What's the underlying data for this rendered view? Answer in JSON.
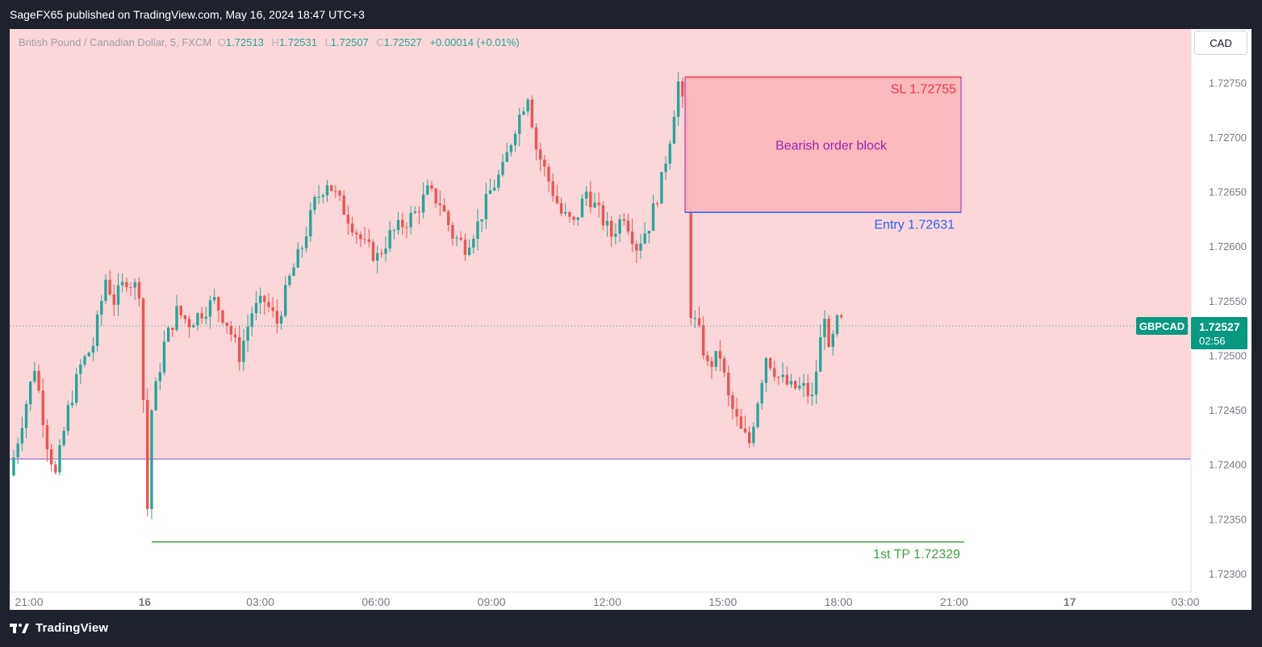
{
  "header": {
    "publisher_line": "SageFX65 published on TradingView.com, May 16, 2024 18:47 UTC+3"
  },
  "legend": {
    "symbol": "British Pound / Canadian Dollar, 5, FXCM",
    "open_label": "O",
    "open": "1.72513",
    "high_label": "H",
    "high": "1.72531",
    "low_label": "L",
    "low": "1.72507",
    "close_label": "C",
    "close": "1.72527",
    "change": "+0.00014 (+0.01%)"
  },
  "currency_button": "CAD",
  "footer": {
    "brand": "TradingView",
    "logo_icon": "tradingview-logo-icon"
  },
  "colors": {
    "up": "#26a69a",
    "down": "#ef5350",
    "zone_fill": "#fcd7d9",
    "order_block_fill": "#f8b6bb",
    "order_block_border": "#9c27b0",
    "entry_line": "#2962ff",
    "sl_text": "#f23645",
    "tp_line": "#43a047",
    "bottom_line": "#7e57c2"
  },
  "chart_data": {
    "type": "candlestick",
    "instrument": "GBPCAD",
    "timeframe": "5",
    "x_tick_labels": [
      "21:00",
      "16",
      "03:00",
      "06:00",
      "09:00",
      "12:00",
      "15:00",
      "18:00",
      "21:00",
      "17",
      "03:00"
    ],
    "y_tick_labels": [
      "1.72750",
      "1.72700",
      "1.72650",
      "1.72600",
      "1.72550",
      "1.72500",
      "1.72450",
      "1.72400",
      "1.72350",
      "1.72300"
    ],
    "y_tick_values": [
      1.7275,
      1.727,
      1.7265,
      1.726,
      1.7255,
      1.725,
      1.7245,
      1.724,
      1.7235,
      1.723
    ],
    "ylim": [
      1.72283,
      1.72799
    ],
    "last_price": {
      "symbol_label": "GBPCAD",
      "price": "1.72527",
      "countdown": "02:56",
      "value": 1.72527
    },
    "annotations": {
      "sl_label": "SL 1.72755",
      "sl_value": 1.72755,
      "entry_label": "Entry  1.72631",
      "entry_value": 1.72631,
      "order_block_label": "Bearish order block",
      "tp_label": "1st TP 1.72329",
      "tp_value": 1.72329,
      "zone_bottom_value": 1.72405
    },
    "price_path": [
      [
        0,
        1.7239
      ],
      [
        3,
        1.7244
      ],
      [
        6,
        1.7249
      ],
      [
        9,
        1.7242
      ],
      [
        11,
        1.7239
      ],
      [
        14,
        1.7245
      ],
      [
        17,
        1.7249
      ],
      [
        20,
        1.7251
      ],
      [
        23,
        1.7257
      ],
      [
        25,
        1.7255
      ],
      [
        28,
        1.7257
      ],
      [
        31,
        1.7256
      ],
      [
        33,
        1.7236
      ],
      [
        34,
        1.7245
      ],
      [
        37,
        1.7251
      ],
      [
        40,
        1.7254
      ],
      [
        43,
        1.7253
      ],
      [
        46,
        1.7254
      ],
      [
        49,
        1.7255
      ],
      [
        52,
        1.7253
      ],
      [
        55,
        1.725
      ],
      [
        58,
        1.7254
      ],
      [
        61,
        1.7255
      ],
      [
        64,
        1.7253
      ],
      [
        67,
        1.7257
      ],
      [
        70,
        1.726
      ],
      [
        73,
        1.7264
      ],
      [
        76,
        1.7266
      ],
      [
        79,
        1.7264
      ],
      [
        82,
        1.7262
      ],
      [
        85,
        1.726
      ],
      [
        88,
        1.7259
      ],
      [
        91,
        1.7261
      ],
      [
        94,
        1.7262
      ],
      [
        97,
        1.7263
      ],
      [
        100,
        1.7265
      ],
      [
        103,
        1.7264
      ],
      [
        106,
        1.7261
      ],
      [
        109,
        1.726
      ],
      [
        112,
        1.7262
      ],
      [
        115,
        1.7265
      ],
      [
        118,
        1.7267
      ],
      [
        121,
        1.7271
      ],
      [
        124,
        1.7274
      ],
      [
        126,
        1.7269
      ],
      [
        129,
        1.7266
      ],
      [
        132,
        1.7263
      ],
      [
        135,
        1.7262
      ],
      [
        138,
        1.7265
      ],
      [
        141,
        1.7263
      ],
      [
        144,
        1.7261
      ],
      [
        147,
        1.7263
      ],
      [
        150,
        1.726
      ],
      [
        153,
        1.7262
      ],
      [
        156,
        1.7266
      ],
      [
        158,
        1.727
      ],
      [
        160,
        1.7275
      ],
      [
        161,
        1.7273
      ],
      [
        162,
        1.7263
      ],
      [
        163,
        1.7254
      ],
      [
        165,
        1.7252
      ],
      [
        167,
        1.7249
      ],
      [
        170,
        1.725
      ],
      [
        172,
        1.7246
      ],
      [
        175,
        1.7243
      ],
      [
        177,
        1.7242
      ],
      [
        179,
        1.7246
      ],
      [
        181,
        1.725
      ],
      [
        184,
        1.7248
      ],
      [
        187,
        1.7247
      ],
      [
        190,
        1.7247
      ],
      [
        192,
        1.7246
      ],
      [
        195,
        1.7254
      ],
      [
        196,
        1.725
      ],
      [
        198,
        1.7253
      ]
    ]
  }
}
